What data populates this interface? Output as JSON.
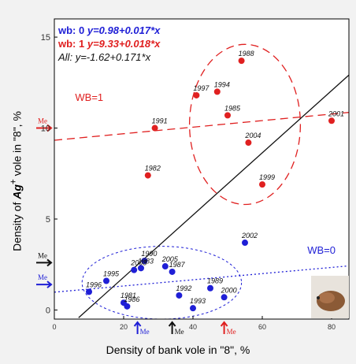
{
  "chart_data": {
    "type": "scatter",
    "xlim": [
      0,
      85
    ],
    "ylim": [
      -0.5,
      16
    ],
    "x_ticks": [
      "0",
      "20",
      "40",
      "60",
      "80"
    ],
    "y_ticks": [
      "0",
      "5",
      "10",
      "15"
    ],
    "xlabel": "Density of bank vole in \"8\", %",
    "ylabel_parts": [
      "Density of ",
      "Ag",
      "+",
      " vole in \"8\", %"
    ],
    "series": [
      {
        "name": "wb: 0",
        "color": "#1f1fd6",
        "points": [
          {
            "year": "1990",
            "x": 26,
            "y": 2.7
          },
          {
            "year": "2005",
            "x": 32,
            "y": 2.4
          },
          {
            "year": "1983",
            "x": 25,
            "y": 2.3
          },
          {
            "year": "2003",
            "x": 23,
            "y": 2.2
          },
          {
            "year": "1987",
            "x": 34,
            "y": 2.1
          },
          {
            "year": "1995",
            "x": 15,
            "y": 1.6
          },
          {
            "year": "1989",
            "x": 45,
            "y": 1.2
          },
          {
            "year": "1996",
            "x": 10,
            "y": 1.0
          },
          {
            "year": "1992",
            "x": 36,
            "y": 0.8
          },
          {
            "year": "2000",
            "x": 49,
            "y": 0.7
          },
          {
            "year": "1981",
            "x": 20,
            "y": 0.4
          },
          {
            "year": "1986",
            "x": 21,
            "y": 0.2
          },
          {
            "year": "1993",
            "x": 40,
            "y": 0.1
          },
          {
            "year": "2002",
            "x": 55,
            "y": 3.7
          }
        ]
      },
      {
        "name": "wb: 1",
        "color": "#e02020",
        "points": [
          {
            "year": "1988",
            "x": 54,
            "y": 13.7
          },
          {
            "year": "1997",
            "x": 41,
            "y": 11.8
          },
          {
            "year": "1994",
            "x": 47,
            "y": 12.0
          },
          {
            "year": "1985",
            "x": 50,
            "y": 10.7
          },
          {
            "year": "1991",
            "x": 29,
            "y": 10.0
          },
          {
            "year": "2004",
            "x": 56,
            "y": 9.2
          },
          {
            "year": "2001",
            "x": 80,
            "y": 10.4
          },
          {
            "year": "1982",
            "x": 27,
            "y": 7.4
          },
          {
            "year": "1999",
            "x": 60,
            "y": 6.9
          }
        ]
      }
    ],
    "fits": [
      {
        "label": "wb: 0",
        "eq": "y=0.98+0.017*x",
        "intercept": 0.98,
        "slope": 0.017,
        "color": "#1f1fd6",
        "style": "dotted"
      },
      {
        "label": "wb: 1",
        "eq": "y=9.33+0.018*x",
        "intercept": 9.33,
        "slope": 0.018,
        "color": "#e02020",
        "style": "dashed"
      },
      {
        "label": "All:",
        "eq": "y=-1.62+0.171*x",
        "intercept": -1.62,
        "slope": 0.171,
        "color": "#111111",
        "style": "solid"
      }
    ],
    "group_labels": {
      "wb1": "WB=1",
      "wb0": "WB=0"
    },
    "me_label": "Me",
    "means": {
      "y_wb1": 10.0,
      "y_all": 2.6,
      "y_wb0": 1.4,
      "x_wb0": 24,
      "x_all": 34,
      "x_wb1": 49
    },
    "ellipses": [
      {
        "group": "wb1",
        "cx": 55,
        "cy": 10.2,
        "rx": 16,
        "ry": 4.4
      },
      {
        "group": "wb0",
        "cx": 31,
        "cy": 1.5,
        "rx": 23,
        "ry": 2.0
      }
    ]
  },
  "decor": {
    "image": "bank-vole-photo"
  }
}
